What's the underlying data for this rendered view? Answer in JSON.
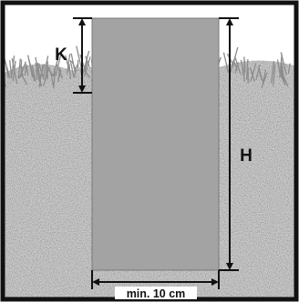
{
  "diagram": {
    "labels": {
      "k": "K",
      "h": "H",
      "width": "min. 10 cm"
    },
    "colors": {
      "frame": "#111111",
      "sky": "#ffffff",
      "soil": "#c9c9c9",
      "grass": "#9d9d9d",
      "pit": "#a3a3a3",
      "arrow": "#111111"
    }
  }
}
